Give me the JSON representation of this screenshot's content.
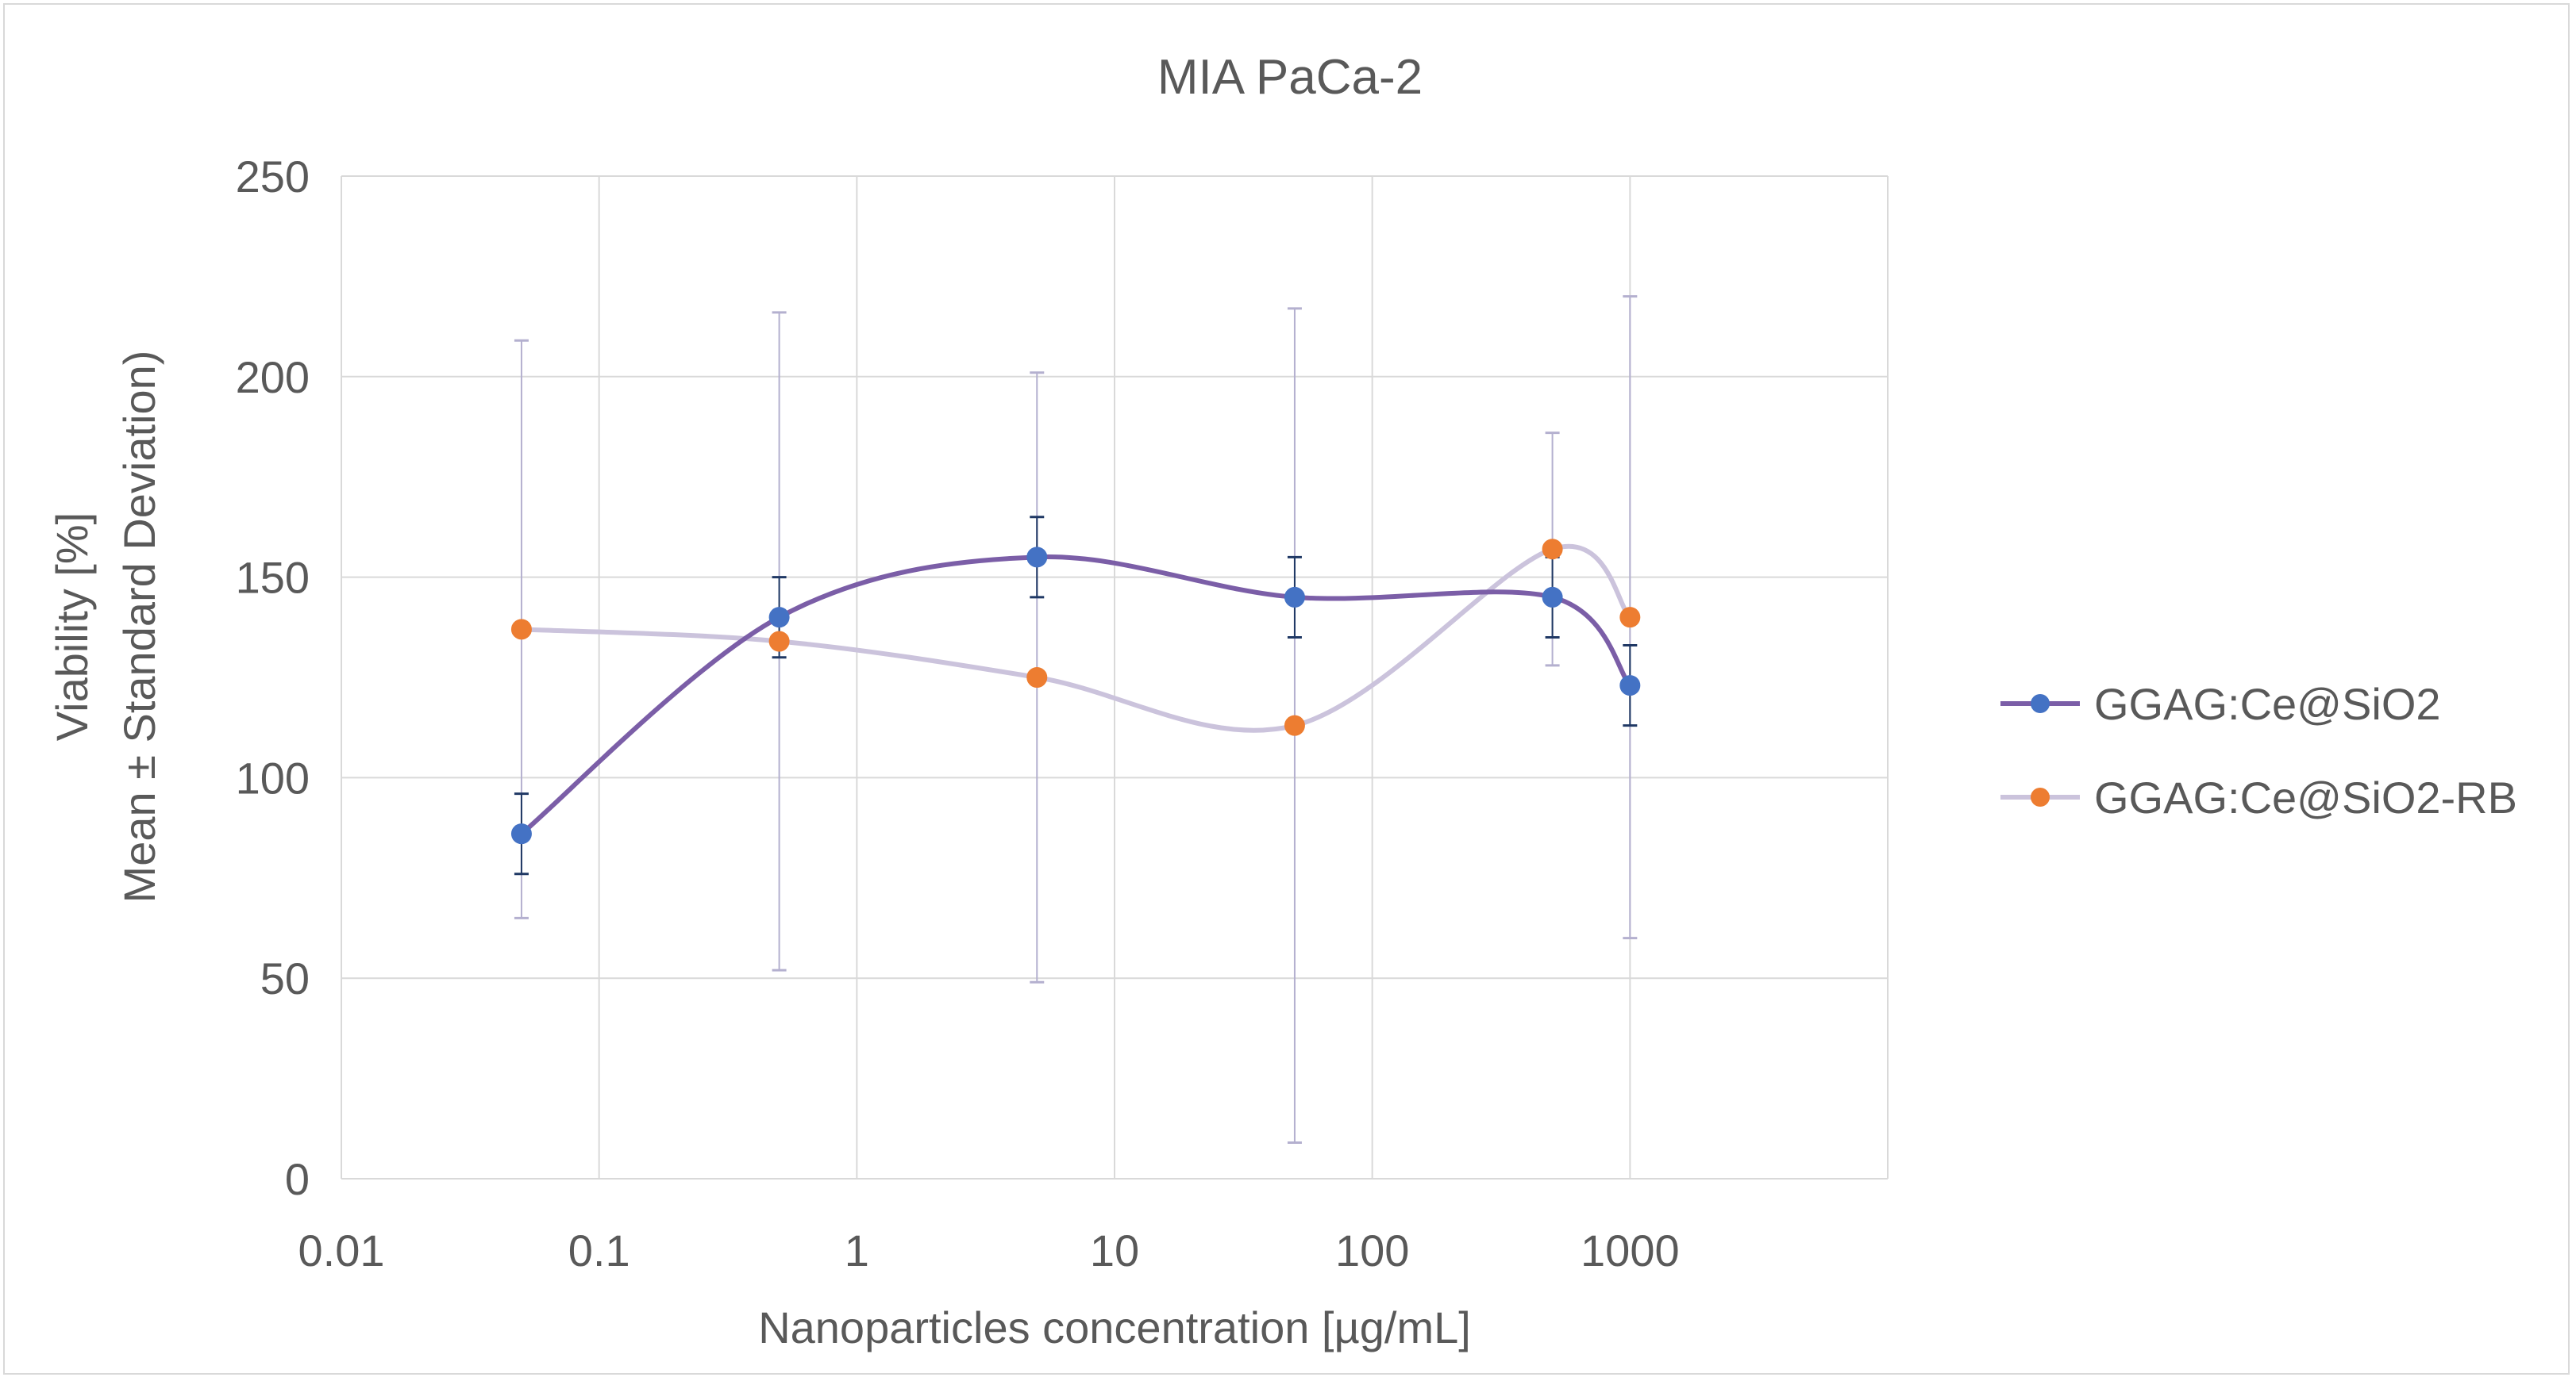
{
  "chart_data": {
    "type": "scatter",
    "title": "MIA PaCa-2",
    "xlabel": "Nanoparticles concentration [µg/mL]",
    "ylabel_line1": "Viability [%]",
    "ylabel_line2": "Mean ± Standard Deviation)",
    "x_scale": "log",
    "xlim": [
      0.01,
      10000
    ],
    "ylim": [
      0,
      250
    ],
    "x_ticks": [
      0.01,
      0.1,
      1,
      10,
      100,
      1000
    ],
    "x_tick_labels": [
      "0.01",
      "0.1",
      "1",
      "10",
      "100",
      "1000"
    ],
    "y_ticks": [
      0,
      50,
      100,
      150,
      200,
      250
    ],
    "y_tick_labels": [
      "0",
      "50",
      "100",
      "150",
      "200",
      "250"
    ],
    "grid": true,
    "legend_position": "right",
    "smooth_lines": true,
    "series": [
      {
        "name": "GGAG:Ce@SiO2",
        "line_color": "#7b5ea7",
        "marker_color": "#4472c4",
        "errorbar_color": "#1f3864",
        "x": [
          0.05,
          0.5,
          5,
          50,
          500,
          1000
        ],
        "y": [
          86,
          140,
          155,
          145,
          145,
          123
        ],
        "err": [
          10,
          10,
          10,
          10,
          10,
          10
        ]
      },
      {
        "name": "GGAG:Ce@SiO2-RB",
        "line_color": "#cbc3dc",
        "marker_color": "#ed7d31",
        "errorbar_color": "#b4b0cf",
        "x": [
          0.05,
          0.5,
          5,
          50,
          500,
          1000
        ],
        "y": [
          137,
          134,
          125,
          113,
          157,
          140
        ],
        "err": [
          72,
          82,
          76,
          104,
          29,
          80
        ]
      }
    ]
  }
}
